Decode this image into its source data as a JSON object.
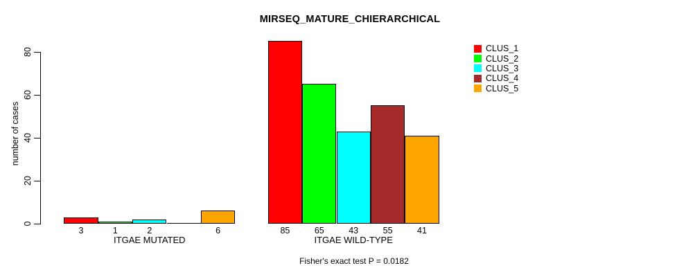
{
  "chart_data": {
    "type": "bar",
    "title": "MIRSEQ_MATURE_CHIERARCHICAL",
    "ylabel": "number of cases",
    "xlabel": "",
    "ylim": [
      0,
      85
    ],
    "yticks": [
      "0",
      "20",
      "40",
      "60",
      "80"
    ],
    "grid": false,
    "legend_position": "top-right",
    "legend": [
      {
        "label": "CLUS_1",
        "color": "#FF0000"
      },
      {
        "label": "CLUS_2",
        "color": "#00FF00"
      },
      {
        "label": "CLUS_3",
        "color": "#00FFFF"
      },
      {
        "label": "CLUS_4",
        "color": "#A52A2A"
      },
      {
        "label": "CLUS_5",
        "color": "#FFA500"
      }
    ],
    "categories": [
      "ITGAE MUTATED",
      "ITGAE WILD-TYPE"
    ],
    "series": [
      {
        "name": "CLUS_1",
        "color": "#FF0000",
        "values": [
          3,
          85
        ]
      },
      {
        "name": "CLUS_2",
        "color": "#00FF00",
        "values": [
          1,
          65
        ]
      },
      {
        "name": "CLUS_3",
        "color": "#00FFFF",
        "values": [
          2,
          43
        ]
      },
      {
        "name": "CLUS_4",
        "color": "#A52A2A",
        "values": [
          0,
          55
        ]
      },
      {
        "name": "CLUS_5",
        "color": "#FFA500",
        "values": [
          6,
          41
        ]
      }
    ],
    "bar_value_labels": [
      [
        "3",
        "1",
        "2",
        "",
        "6"
      ],
      [
        "85",
        "65",
        "43",
        "55",
        "41"
      ]
    ],
    "footer": "Fisher's exact test P = 0.0182"
  }
}
